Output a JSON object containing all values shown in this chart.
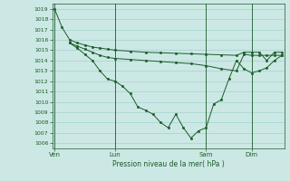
{
  "background_color": "#cce8e4",
  "grid_color": "#99cccc",
  "line_color": "#1a5c2a",
  "title": "Pression niveau de la mer( hPa )",
  "ylim": [
    1005.5,
    1019.5
  ],
  "ytick_vals": [
    1006,
    1007,
    1008,
    1009,
    1010,
    1011,
    1012,
    1013,
    1014,
    1015,
    1016,
    1017,
    1018,
    1019
  ],
  "xtick_labels": [
    "Ven",
    "Lun",
    "Sam",
    "Dim"
  ],
  "xtick_positions": [
    0,
    8,
    20,
    26
  ],
  "vline_positions": [
    0,
    8,
    20,
    26
  ],
  "xlim": [
    -0.3,
    30.3
  ],
  "series1_x": [
    0,
    1,
    2,
    3,
    4,
    5,
    6,
    7,
    8,
    10,
    12,
    14,
    16,
    18,
    20,
    22,
    24,
    25,
    26,
    27,
    28,
    29,
    30
  ],
  "series1_y": [
    1019.0,
    1017.2,
    1016.0,
    1015.7,
    1015.5,
    1015.3,
    1015.2,
    1015.1,
    1015.0,
    1014.9,
    1014.8,
    1014.75,
    1014.7,
    1014.65,
    1014.6,
    1014.55,
    1014.5,
    1014.8,
    1014.8,
    1014.8,
    1014.0,
    1014.8,
    1014.8
  ],
  "series2_x": [
    2,
    3,
    4,
    5,
    6,
    7,
    8,
    10,
    12,
    14,
    16,
    18,
    20,
    22,
    24,
    25,
    26,
    27,
    28,
    29,
    30
  ],
  "series2_y": [
    1015.7,
    1015.4,
    1015.1,
    1014.8,
    1014.5,
    1014.3,
    1014.2,
    1014.1,
    1014.0,
    1013.9,
    1013.8,
    1013.7,
    1013.5,
    1013.2,
    1013.0,
    1014.6,
    1014.5,
    1014.5,
    1014.5,
    1014.5,
    1014.5
  ],
  "series3_x": [
    2,
    3,
    4,
    5,
    6,
    7,
    8,
    9,
    10,
    11,
    12,
    13,
    14,
    15,
    16,
    17,
    18,
    19,
    20,
    21,
    22,
    23,
    24,
    25,
    26,
    27,
    28,
    29,
    30
  ],
  "series3_y": [
    1015.7,
    1015.2,
    1014.6,
    1014.0,
    1013.0,
    1012.2,
    1012.0,
    1011.5,
    1010.8,
    1009.5,
    1009.2,
    1008.8,
    1008.0,
    1007.5,
    1008.8,
    1007.5,
    1006.5,
    1007.2,
    1007.5,
    1009.8,
    1010.2,
    1012.2,
    1014.0,
    1013.2,
    1012.8,
    1013.0,
    1013.3,
    1014.0,
    1014.5
  ]
}
